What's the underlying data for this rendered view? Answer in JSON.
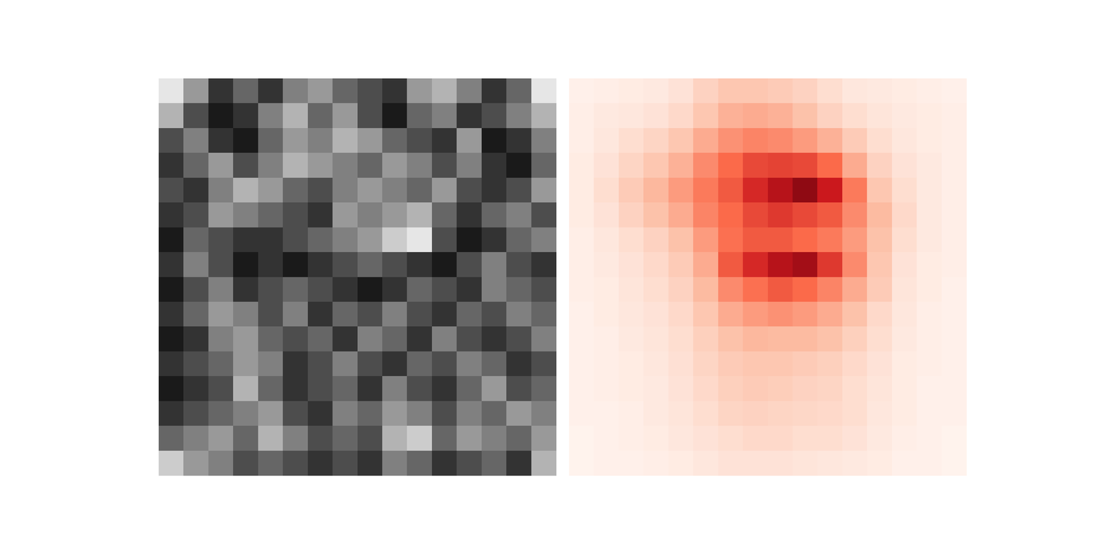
{
  "chart_data": [
    {
      "type": "heatmap",
      "color": "gray",
      "tick_labels": false,
      "zlim": [
        0,
        1
      ],
      "cells": [
        [
          0.9,
          0.6,
          0.2,
          0.4,
          0.2,
          0.5,
          0.6,
          0.4,
          0.3,
          0.2,
          0.6,
          0.7,
          0.5,
          0.2,
          0.4,
          0.9
        ],
        [
          0.7,
          0.3,
          0.1,
          0.2,
          0.5,
          0.7,
          0.4,
          0.6,
          0.3,
          0.1,
          0.4,
          0.5,
          0.2,
          0.3,
          0.5,
          0.7
        ],
        [
          0.3,
          0.5,
          0.2,
          0.1,
          0.4,
          0.6,
          0.5,
          0.7,
          0.6,
          0.4,
          0.3,
          0.2,
          0.6,
          0.1,
          0.2,
          0.5
        ],
        [
          0.2,
          0.4,
          0.6,
          0.3,
          0.5,
          0.7,
          0.6,
          0.5,
          0.4,
          0.6,
          0.5,
          0.3,
          0.5,
          0.2,
          0.1,
          0.4
        ],
        [
          0.3,
          0.2,
          0.5,
          0.7,
          0.6,
          0.4,
          0.3,
          0.5,
          0.6,
          0.5,
          0.4,
          0.6,
          0.3,
          0.2,
          0.3,
          0.6
        ],
        [
          0.2,
          0.3,
          0.6,
          0.5,
          0.4,
          0.3,
          0.2,
          0.6,
          0.5,
          0.6,
          0.7,
          0.4,
          0.2,
          0.4,
          0.5,
          0.3
        ],
        [
          0.1,
          0.4,
          0.3,
          0.2,
          0.2,
          0.3,
          0.4,
          0.5,
          0.6,
          0.8,
          0.9,
          0.3,
          0.1,
          0.2,
          0.4,
          0.5
        ],
        [
          0.2,
          0.5,
          0.3,
          0.1,
          0.2,
          0.1,
          0.2,
          0.3,
          0.4,
          0.3,
          0.2,
          0.1,
          0.3,
          0.5,
          0.3,
          0.2
        ],
        [
          0.1,
          0.3,
          0.5,
          0.2,
          0.3,
          0.4,
          0.3,
          0.2,
          0.1,
          0.2,
          0.4,
          0.3,
          0.2,
          0.5,
          0.4,
          0.3
        ],
        [
          0.2,
          0.4,
          0.6,
          0.5,
          0.3,
          0.5,
          0.2,
          0.4,
          0.3,
          0.5,
          0.3,
          0.2,
          0.4,
          0.3,
          0.5,
          0.4
        ],
        [
          0.1,
          0.2,
          0.5,
          0.6,
          0.4,
          0.3,
          0.4,
          0.2,
          0.5,
          0.4,
          0.2,
          0.5,
          0.3,
          0.2,
          0.3,
          0.5
        ],
        [
          0.2,
          0.3,
          0.4,
          0.6,
          0.5,
          0.2,
          0.3,
          0.5,
          0.3,
          0.2,
          0.4,
          0.3,
          0.5,
          0.4,
          0.2,
          0.3
        ],
        [
          0.1,
          0.2,
          0.3,
          0.7,
          0.4,
          0.2,
          0.3,
          0.4,
          0.2,
          0.5,
          0.3,
          0.2,
          0.4,
          0.6,
          0.3,
          0.4
        ],
        [
          0.2,
          0.3,
          0.4,
          0.5,
          0.6,
          0.3,
          0.2,
          0.5,
          0.4,
          0.6,
          0.5,
          0.3,
          0.5,
          0.4,
          0.6,
          0.5
        ],
        [
          0.4,
          0.5,
          0.6,
          0.4,
          0.7,
          0.5,
          0.3,
          0.4,
          0.3,
          0.7,
          0.8,
          0.4,
          0.6,
          0.5,
          0.4,
          0.6
        ],
        [
          0.8,
          0.6,
          0.5,
          0.3,
          0.4,
          0.3,
          0.2,
          0.3,
          0.2,
          0.5,
          0.4,
          0.2,
          0.3,
          0.4,
          0.2,
          0.7
        ]
      ]
    },
    {
      "type": "heatmap",
      "color": "red",
      "tick_labels": false,
      "zlim": [
        0,
        1
      ],
      "cells": [
        [
          0.02,
          0.03,
          0.04,
          0.05,
          0.08,
          0.15,
          0.2,
          0.2,
          0.18,
          0.15,
          0.1,
          0.06,
          0.05,
          0.04,
          0.03,
          0.02
        ],
        [
          0.03,
          0.05,
          0.06,
          0.08,
          0.12,
          0.2,
          0.28,
          0.3,
          0.28,
          0.22,
          0.15,
          0.1,
          0.07,
          0.05,
          0.04,
          0.03
        ],
        [
          0.03,
          0.06,
          0.1,
          0.14,
          0.2,
          0.3,
          0.38,
          0.42,
          0.4,
          0.35,
          0.28,
          0.18,
          0.1,
          0.06,
          0.04,
          0.03
        ],
        [
          0.04,
          0.08,
          0.14,
          0.2,
          0.28,
          0.4,
          0.5,
          0.6,
          0.62,
          0.6,
          0.5,
          0.3,
          0.15,
          0.08,
          0.05,
          0.03
        ],
        [
          0.04,
          0.1,
          0.18,
          0.26,
          0.35,
          0.45,
          0.55,
          0.7,
          0.8,
          0.9,
          0.75,
          0.45,
          0.2,
          0.1,
          0.05,
          0.03
        ],
        [
          0.04,
          0.08,
          0.15,
          0.22,
          0.3,
          0.42,
          0.5,
          0.6,
          0.65,
          0.6,
          0.55,
          0.4,
          0.25,
          0.12,
          0.05,
          0.03
        ],
        [
          0.03,
          0.06,
          0.1,
          0.15,
          0.22,
          0.35,
          0.48,
          0.55,
          0.55,
          0.5,
          0.45,
          0.35,
          0.22,
          0.1,
          0.05,
          0.03
        ],
        [
          0.03,
          0.05,
          0.08,
          0.12,
          0.18,
          0.3,
          0.55,
          0.7,
          0.8,
          0.85,
          0.65,
          0.4,
          0.2,
          0.08,
          0.04,
          0.03
        ],
        [
          0.03,
          0.04,
          0.07,
          0.1,
          0.15,
          0.25,
          0.4,
          0.48,
          0.55,
          0.5,
          0.42,
          0.3,
          0.18,
          0.07,
          0.04,
          0.02
        ],
        [
          0.02,
          0.04,
          0.06,
          0.08,
          0.12,
          0.2,
          0.3,
          0.35,
          0.38,
          0.35,
          0.3,
          0.22,
          0.12,
          0.06,
          0.03,
          0.02
        ],
        [
          0.02,
          0.03,
          0.05,
          0.07,
          0.1,
          0.16,
          0.22,
          0.26,
          0.25,
          0.25,
          0.22,
          0.16,
          0.1,
          0.05,
          0.03,
          0.02
        ],
        [
          0.02,
          0.03,
          0.04,
          0.06,
          0.09,
          0.14,
          0.18,
          0.2,
          0.2,
          0.18,
          0.16,
          0.12,
          0.08,
          0.04,
          0.03,
          0.02
        ],
        [
          0.02,
          0.03,
          0.04,
          0.05,
          0.08,
          0.12,
          0.16,
          0.18,
          0.17,
          0.15,
          0.14,
          0.1,
          0.07,
          0.04,
          0.02,
          0.02
        ],
        [
          0.02,
          0.02,
          0.03,
          0.05,
          0.07,
          0.1,
          0.14,
          0.15,
          0.14,
          0.13,
          0.12,
          0.1,
          0.06,
          0.04,
          0.02,
          0.02
        ],
        [
          0.01,
          0.02,
          0.03,
          0.04,
          0.06,
          0.08,
          0.1,
          0.12,
          0.12,
          0.1,
          0.1,
          0.08,
          0.05,
          0.03,
          0.02,
          0.01
        ],
        [
          0.01,
          0.02,
          0.02,
          0.03,
          0.04,
          0.06,
          0.08,
          0.08,
          0.08,
          0.07,
          0.06,
          0.05,
          0.04,
          0.02,
          0.02,
          0.01
        ]
      ]
    }
  ]
}
